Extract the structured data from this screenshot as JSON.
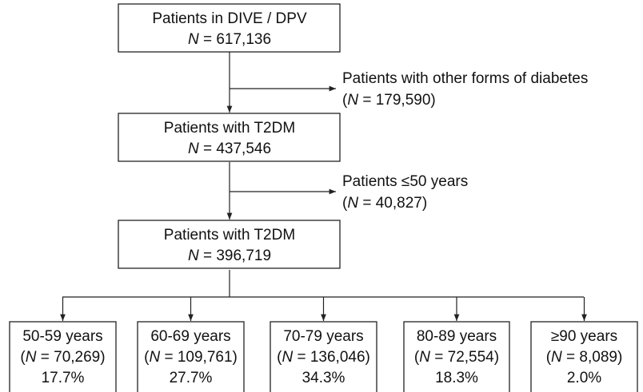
{
  "nodes": [
    {
      "title": "Patients in DIVE / DPV",
      "n": "N",
      "count": " = 617,136"
    },
    {
      "title": "Patients with T2DM",
      "n": "N",
      "count": " = 437,546"
    },
    {
      "title": "Patients with T2DM",
      "n": "N",
      "count": " = 396,719"
    }
  ],
  "exclusions": [
    {
      "title": "Patients with other forms of diabetes",
      "open": "(",
      "n": "N",
      "count": " = 179,590)"
    },
    {
      "title": "Patients ≤50 years",
      "open": "(",
      "n": "N",
      "count": " = 40,827)"
    }
  ],
  "age_groups": [
    {
      "title": "50-59 years",
      "open": "(",
      "n": "N",
      "count": " = 70,269)",
      "percent": "17.7%"
    },
    {
      "title": "60-69 years",
      "open": "(",
      "n": "N",
      "count": " = 109,761)",
      "percent": "27.7%"
    },
    {
      "title": "70-79 years",
      "open": "(",
      "n": "N",
      "count": " = 136,046)",
      "percent": "34.3%"
    },
    {
      "title": "80-89 years",
      "open": "(",
      "n": "N",
      "count": " = 72,554)",
      "percent": "18.3%"
    },
    {
      "title": "≥90 years",
      "open": "(",
      "n": "N",
      "count": " = 8,089)",
      "percent": "2.0%"
    }
  ]
}
